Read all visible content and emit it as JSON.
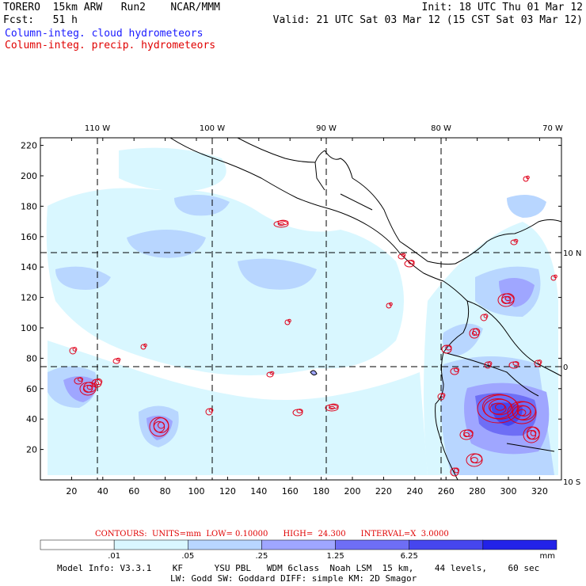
{
  "header": {
    "model": "TORERO  15km ARW   Run2    NCAR/MMM",
    "init": "Init: 18 UTC Thu 01 Mar 12",
    "fcst": "Fcst:   51 h",
    "valid": "Valid: 21 UTC Sat 03 Mar 12 (15 CST Sat 03 Mar 12)",
    "field1": "Column-integ. cloud hydrometeors",
    "field2": "Column-integ. precip. hydrometeors"
  },
  "colors": {
    "field1": "#1a1aff",
    "field2": "#e00000",
    "contour": "#e0001a",
    "levels": [
      "#ffffff",
      "#d9f7ff",
      "#b8d6ff",
      "#9fa6ff",
      "#6e6ef5",
      "#4646ee",
      "#2222e8"
    ]
  },
  "map": {
    "lon_labels": [
      "110 W",
      "100 W",
      "90 W",
      "80 W",
      "70 W"
    ],
    "lon_values": [
      -110,
      -100,
      -90,
      -80,
      -70
    ],
    "lat_labels": [
      "10 N",
      "0",
      "10 S"
    ],
    "lat_values": [
      10,
      0,
      -10
    ],
    "x_ticks": [
      "20",
      "40",
      "60",
      "80",
      "100",
      "120",
      "140",
      "160",
      "180",
      "200",
      "220",
      "240",
      "260",
      "280",
      "300",
      "320"
    ],
    "y_ticks": [
      "20",
      "40",
      "60",
      "80",
      "100",
      "120",
      "140",
      "160",
      "180",
      "200",
      "220"
    ],
    "x_range": [
      0,
      334
    ],
    "y_range": [
      0,
      225
    ]
  },
  "contours": {
    "text": "CONTOURS:  UNITS=mm  LOW= 0.10000      HIGH=  24.300      INTERVAL=X  3.0000"
  },
  "colorbar": {
    "labels": [
      ".01",
      ".05",
      ".25",
      "1.25",
      "6.25"
    ],
    "unit": "mm"
  },
  "footer": {
    "line1": "Model Info: V3.3.1    KF      YSU PBL   WDM 6class  Noah LSM  15 km,    44 levels,    60 sec",
    "line2": "LW: Godd SW: Goddard DIFF: simple KM: 2D Smagor"
  }
}
